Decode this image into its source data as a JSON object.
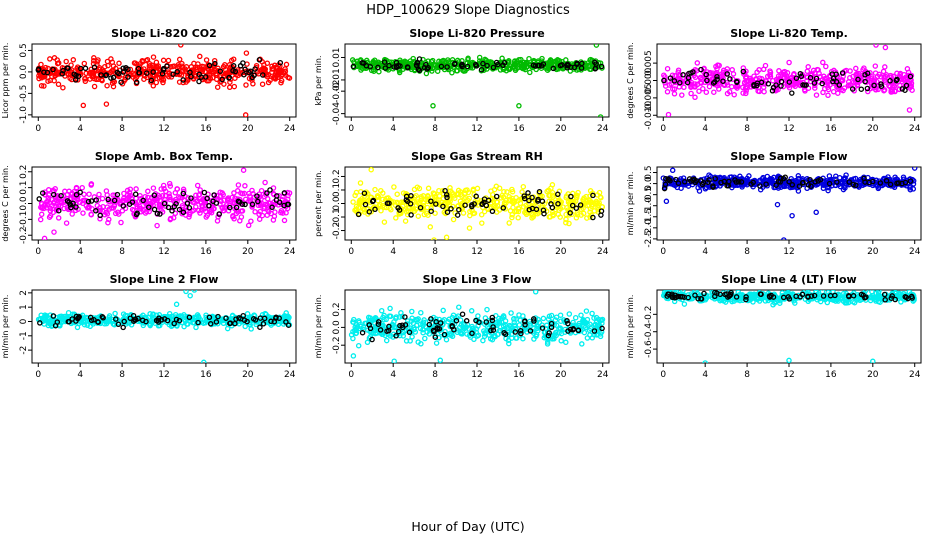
{
  "page_title": "HDP_100629  Slope Diagnostics",
  "x_axis_label": "Hour of Day (UTC)",
  "chart_data": [
    {
      "type": "scatter",
      "title": "Slope Li-820 CO2",
      "ylabel": "Licor ppm per min.",
      "color": "#ff0000",
      "x_ticks": [
        0,
        4,
        8,
        12,
        16,
        20,
        24
      ],
      "y_ticks": [
        -1.0,
        -0.5,
        0.0,
        0.5
      ],
      "y_tick_labels": [
        "-1.0",
        "-0.5",
        "0.0",
        "0.5"
      ],
      "xlim": [
        -0.6,
        24.6
      ],
      "ylim": [
        -1.05,
        0.65
      ],
      "center": 0.0,
      "spread": 0.22,
      "outliers": [
        [
          19.8,
          -1.0
        ],
        [
          4.3,
          -0.78
        ],
        [
          6.5,
          -0.75
        ],
        [
          13.6,
          0.63
        ]
      ]
    },
    {
      "type": "scatter",
      "title": "Slope Li-820 Pressure",
      "ylabel": "kPa per min.",
      "color": "#00bb00",
      "x_ticks": [
        0,
        4,
        8,
        12,
        16,
        20,
        24
      ],
      "y_ticks": [
        -0.04,
        -0.02,
        -0.01,
        0.01
      ],
      "y_tick_labels": [
        "-0.04",
        "-0.02",
        "-0.01",
        "0.01"
      ],
      "xlim": [
        -0.6,
        24.6
      ],
      "ylim": [
        -0.043,
        0.022
      ],
      "center": 0.003,
      "spread": 0.004,
      "outliers": [
        [
          7.8,
          -0.033
        ],
        [
          16.0,
          -0.033
        ],
        [
          23.8,
          -0.043
        ],
        [
          23.4,
          0.021
        ]
      ]
    },
    {
      "type": "scatter",
      "title": "Slope Li-820 Temp.",
      "ylabel": "degrees C per min.",
      "color": "#ff00ff",
      "x_ticks": [
        0,
        4,
        8,
        12,
        16,
        20,
        24
      ],
      "y_ticks": [
        -0.01,
        -0.005,
        0.0,
        0.005
      ],
      "y_tick_labels": [
        "-0.010",
        "-0.005",
        "0.000",
        "0.005"
      ],
      "xlim": [
        -0.6,
        24.6
      ],
      "ylim": [
        -0.0105,
        0.0105
      ],
      "center": 0.0,
      "spread": 0.0028,
      "outliers": [
        [
          20.3,
          0.0102
        ],
        [
          21.2,
          0.0095
        ],
        [
          0.5,
          -0.0098
        ],
        [
          23.5,
          -0.0085
        ]
      ]
    },
    {
      "type": "scatter",
      "title": "Slope Amb. Box Temp.",
      "ylabel": "degrees C per min.",
      "color": "#ff00ff",
      "x_ticks": [
        0,
        4,
        8,
        12,
        16,
        20,
        24
      ],
      "y_ticks": [
        -0.2,
        -0.1,
        0.0,
        0.1,
        0.2
      ],
      "y_tick_labels": [
        "-0.2",
        "-0.1",
        "0.0",
        "0.1",
        "0.2"
      ],
      "xlim": [
        -0.6,
        24.6
      ],
      "ylim": [
        -0.23,
        0.23
      ],
      "center": 0.0,
      "spread": 0.075,
      "outliers": [
        [
          0.6,
          -0.22
        ],
        [
          1.5,
          -0.18
        ],
        [
          19.6,
          0.21
        ]
      ]
    },
    {
      "type": "scatter",
      "title": "Slope Gas Stream RH",
      "ylabel": "percent per min.",
      "color": "#ffff00",
      "x_ticks": [
        0,
        4,
        8,
        12,
        16,
        20,
        24
      ],
      "y_ticks": [
        -0.2,
        -0.1,
        0.0,
        0.1,
        0.2
      ],
      "y_tick_labels": [
        "-0.2",
        "-0.1",
        "0.0",
        "0.1",
        "0.2"
      ],
      "xlim": [
        -0.6,
        24.6
      ],
      "ylim": [
        -0.27,
        0.27
      ],
      "center": 0.0,
      "spread": 0.09,
      "outliers": [
        [
          7.9,
          -0.27
        ],
        [
          1.9,
          0.25
        ],
        [
          9.1,
          -0.25
        ]
      ]
    },
    {
      "type": "scatter",
      "title": "Slope Sample Flow",
      "ylabel": "ml/min per min.",
      "color": "#0000dd",
      "x_ticks": [
        0,
        4,
        8,
        12,
        16,
        20,
        24
      ],
      "y_ticks": [
        -2.5,
        -2.0,
        -1.5,
        -1.0,
        -0.5,
        0.0,
        0.5
      ],
      "y_tick_labels": [
        "-2.5",
        "-2.0",
        "-1.5",
        "-1.0",
        "-0.5",
        "0.0",
        "0.5"
      ],
      "xlim": [
        -0.6,
        24.6
      ],
      "ylim": [
        -2.55,
        0.75
      ],
      "center": 0.05,
      "spread": 0.2,
      "outliers": [
        [
          11.5,
          -2.55
        ],
        [
          12.3,
          -1.45
        ],
        [
          14.6,
          -1.3
        ],
        [
          0.3,
          -0.8
        ],
        [
          10.9,
          -0.95
        ],
        [
          24.0,
          0.7
        ],
        [
          0.9,
          0.6
        ]
      ]
    },
    {
      "type": "scatter",
      "title": "Slope Line 2 Flow",
      "ylabel": "ml/min per min.",
      "color": "#00eeee",
      "x_ticks": [
        0,
        4,
        8,
        12,
        16,
        20,
        24
      ],
      "y_ticks": [
        -2,
        -1,
        0,
        1,
        2
      ],
      "y_tick_labels": [
        "-2",
        "-1",
        "0",
        "1",
        "2"
      ],
      "xlim": [
        -0.6,
        24.6
      ],
      "ylim": [
        -2.9,
        2.2
      ],
      "center": 0.1,
      "spread": 0.32,
      "outliers": [
        [
          14.1,
          2.1
        ],
        [
          14.5,
          1.8
        ],
        [
          14.9,
          2.2
        ],
        [
          15.8,
          -2.85
        ],
        [
          13.2,
          1.2
        ]
      ]
    },
    {
      "type": "scatter",
      "title": "Slope Line 3 Flow",
      "ylabel": "ml/min per min.",
      "color": "#00eeee",
      "x_ticks": [
        0,
        4,
        8,
        12,
        16,
        20,
        24
      ],
      "y_ticks": [
        -0.2,
        0.0,
        0.2
      ],
      "y_tick_labels": [
        "-0.2",
        "0.0",
        "0.2"
      ],
      "xlim": [
        -0.6,
        24.6
      ],
      "ylim": [
        -0.4,
        0.42
      ],
      "center": 0.0,
      "spread": 0.12,
      "outliers": [
        [
          17.6,
          0.4
        ],
        [
          0.2,
          -0.32
        ],
        [
          4.1,
          -0.38
        ],
        [
          8.5,
          -0.37
        ]
      ]
    },
    {
      "type": "scatter",
      "title": "Slope Line 4 (LT) Flow",
      "ylabel": "ml/min per min.",
      "color": "#00eeee",
      "x_ticks": [
        0,
        4,
        8,
        12,
        16,
        20,
        24
      ],
      "y_ticks": [
        -0.6,
        -0.4,
        -0.2
      ],
      "y_tick_labels": [
        "-0.6",
        "-0.4",
        "-0.2"
      ],
      "xlim": [
        -0.6,
        24.6
      ],
      "ylim": [
        -0.76,
        0.08
      ],
      "center": 0.0,
      "spread": 0.045,
      "outliers": [
        [
          4.0,
          -0.76
        ],
        [
          12.0,
          -0.73
        ],
        [
          20.0,
          -0.74
        ]
      ]
    }
  ]
}
